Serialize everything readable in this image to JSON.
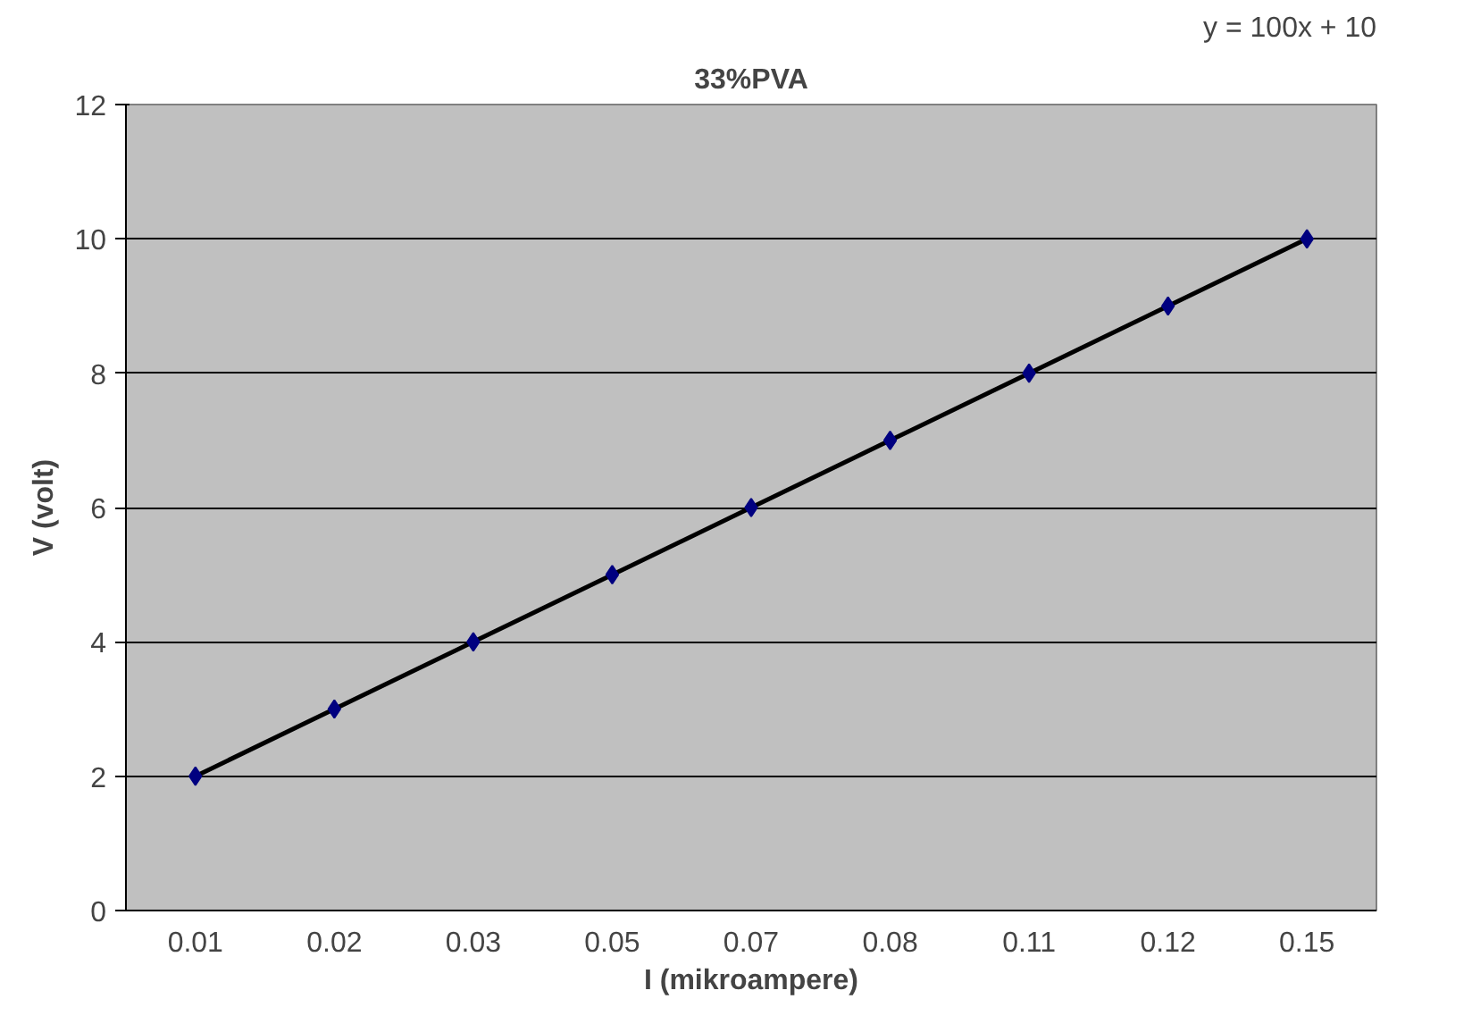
{
  "chart_data": {
    "type": "line",
    "title": "33%PVA",
    "xlabel": "I (mikroampere)",
    "ylabel": "V (volt)",
    "annotations": [
      "y = 100x + 10"
    ],
    "categories": [
      "0.01",
      "0.02",
      "0.03",
      "0.05",
      "0.07",
      "0.08",
      "0.11",
      "0.12",
      "0.15"
    ],
    "series": [
      {
        "color": "#000000",
        "values": [
          2,
          3,
          4,
          5,
          6,
          7,
          8,
          9,
          10
        ]
      },
      {
        "type": "scatter",
        "color": "#000080",
        "marker": "diamond",
        "values": [
          2,
          3,
          4,
          5,
          6,
          7,
          8,
          9,
          10
        ]
      }
    ],
    "ylim": [
      0,
      12
    ],
    "yticks": [
      0,
      2,
      4,
      6,
      8,
      10,
      12
    ],
    "grid": "y"
  }
}
